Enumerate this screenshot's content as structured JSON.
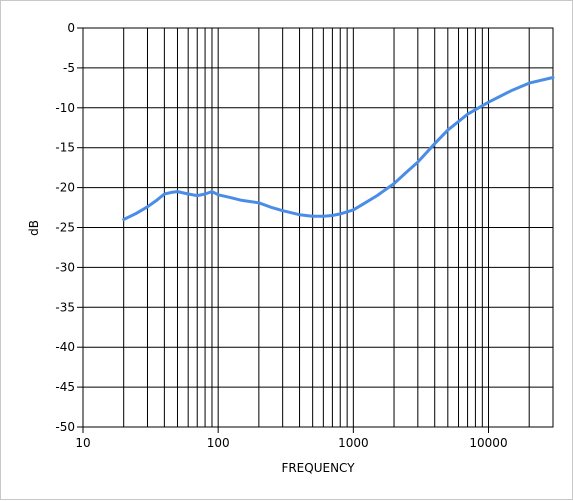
{
  "chart_data": {
    "type": "line",
    "title": "",
    "xlabel": "FREQUENCY",
    "ylabel": "dB",
    "x_scale": "log",
    "xlim": [
      10,
      30000
    ],
    "ylim": [
      -50,
      0
    ],
    "x_tick_labels": [
      "10",
      "100",
      "1000",
      "10000"
    ],
    "y_tick_labels": [
      "0",
      "-5",
      "-10",
      "-15",
      "-20",
      "-25",
      "-30",
      "-35",
      "-40",
      "-45",
      "-50"
    ],
    "grid": true,
    "legend": "none",
    "series": [
      {
        "color": "#4a8de8",
        "x": [
          20,
          25,
          30,
          35,
          40,
          45,
          50,
          60,
          70,
          80,
          90,
          100,
          120,
          150,
          200,
          250,
          300,
          400,
          500,
          600,
          700,
          800,
          1000,
          1200,
          1500,
          2000,
          2500,
          3000,
          4000,
          5000,
          7000,
          10000,
          15000,
          20000,
          30000
        ],
        "y": [
          -24.0,
          -23.2,
          -22.4,
          -21.6,
          -20.8,
          -20.6,
          -20.5,
          -20.8,
          -21.0,
          -20.8,
          -20.5,
          -20.9,
          -21.2,
          -21.6,
          -21.9,
          -22.5,
          -22.9,
          -23.4,
          -23.6,
          -23.6,
          -23.5,
          -23.3,
          -22.8,
          -22.0,
          -21.0,
          -19.5,
          -18.0,
          -16.8,
          -14.5,
          -12.8,
          -10.8,
          -9.3,
          -7.8,
          -6.9,
          -6.2
        ]
      }
    ]
  }
}
